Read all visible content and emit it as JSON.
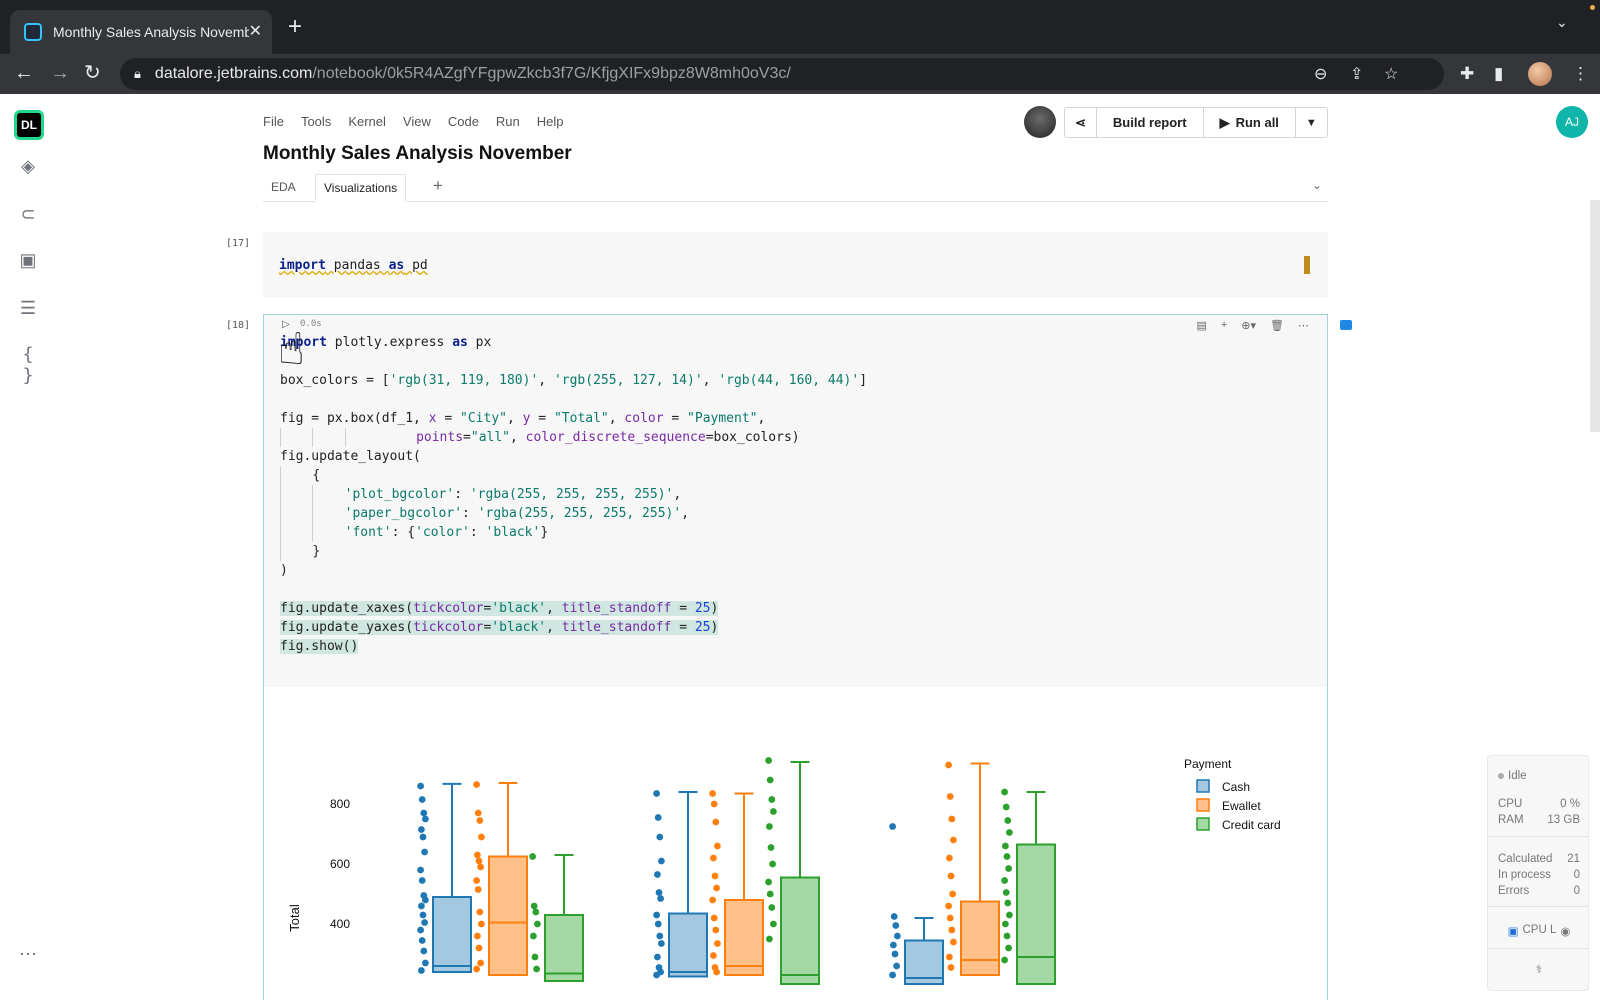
{
  "browser": {
    "tab_title": "Monthly Sales Analysis November",
    "url_host": "datalore.jetbrains.com",
    "url_path": "/notebook/0k5R4AZgfYFgpwZkcb3f7G/KfjgXIFx9bpz8W8mh0oV3c/"
  },
  "sidebar": {
    "logo_text": "DL"
  },
  "user": {
    "initials": "AJ"
  },
  "menu": {
    "items": [
      "File",
      "Tools",
      "Kernel",
      "View",
      "Code",
      "Run",
      "Help"
    ]
  },
  "actions": {
    "build_report": "Build report",
    "run_all": "Run all"
  },
  "notebook": {
    "title": "Monthly Sales Analysis November",
    "sheets": [
      "EDA",
      "Visualizations"
    ],
    "active_sheet": "Visualizations"
  },
  "cells": [
    {
      "exec_count": "[17]",
      "code_lines": [
        "import pandas as pd"
      ]
    },
    {
      "exec_count": "[18]",
      "exec_time": "0.0s",
      "code_lines": [
        "import plotly.express as px",
        "",
        "box_colors = ['rgb(31, 119, 180)', 'rgb(255, 127, 14)', 'rgb(44, 160, 44)']",
        "",
        "fig = px.box(df_1, x = \"City\", y = \"Total\", color = \"Payment\",",
        "             points=\"all\", color_discrete_sequence=box_colors)",
        "fig.update_layout(",
        "    {",
        "        'plot_bgcolor': 'rgba(255, 255, 255, 255)',",
        "        'paper_bgcolor': 'rgba(255, 255, 255, 255)',",
        "        'font': {'color': 'black'}",
        "    }",
        ")",
        "",
        "fig.update_xaxes(tickcolor='black', title_standoff = 25)",
        "fig.update_yaxes(tickcolor='black', title_standoff = 25)",
        "fig.show()"
      ]
    }
  ],
  "chart_data": {
    "type": "box",
    "ylabel": "Total",
    "yticks": [
      400,
      600,
      800
    ],
    "legend_title": "Payment",
    "legend_placement": "top-right",
    "series": [
      {
        "name": "Cash",
        "color": "#1f77b4"
      },
      {
        "name": "Ewallet",
        "color": "#ff7f0e"
      },
      {
        "name": "Credit card",
        "color": "#2ca02c"
      }
    ],
    "groups": [
      {
        "boxes": [
          {
            "series": "Cash",
            "q1": 240,
            "median": 260,
            "q3": 490,
            "whisker_high": 867,
            "points": [
              860,
              815,
              770,
              750,
              715,
              690,
              640,
              580,
              545,
              495,
              480,
              460,
              430,
              405,
              380,
              345,
              310,
              270,
              245
            ]
          },
          {
            "series": "Ewallet",
            "q1": 230,
            "median": 405,
            "q3": 625,
            "whisker_high": 870,
            "points": [
              865,
              770,
              745,
              690,
              630,
              610,
              590,
              545,
              515,
              440,
              400,
              360,
              320,
              270,
              250
            ]
          },
          {
            "series": "Credit card",
            "q1": 210,
            "median": 235,
            "q3": 430,
            "whisker_high": 630,
            "points": [
              625,
              460,
              440,
              400,
              360,
              290,
              250
            ]
          }
        ]
      },
      {
        "boxes": [
          {
            "series": "Cash",
            "q1": 225,
            "median": 240,
            "q3": 435,
            "whisker_high": 840,
            "points": [
              835,
              755,
              690,
              610,
              565,
              505,
              485,
              430,
              400,
              360,
              335,
              290,
              255,
              240,
              230
            ]
          },
          {
            "series": "Ewallet",
            "q1": 230,
            "median": 260,
            "q3": 480,
            "whisker_high": 835,
            "points": [
              835,
              800,
              740,
              660,
              620,
              560,
              520,
              480,
              420,
              380,
              335,
              295,
              255,
              240
            ]
          },
          {
            "series": "Credit card",
            "q1": 200,
            "median": 230,
            "q3": 555,
            "whisker_high": 940,
            "points": [
              945,
              880,
              815,
              775,
              725,
              655,
              600,
              540,
              500,
              455,
              400,
              350
            ]
          }
        ]
      },
      {
        "boxes": [
          {
            "series": "Cash",
            "q1": 200,
            "median": 220,
            "q3": 345,
            "whisker_high": 420,
            "points": [
              725,
              425,
              395,
              360,
              330,
              300,
              260,
              230
            ]
          },
          {
            "series": "Ewallet",
            "q1": 230,
            "median": 280,
            "q3": 475,
            "whisker_high": 935,
            "points": [
              930,
              825,
              750,
              680,
              620,
              560,
              500,
              460,
              420,
              380,
              340,
              290,
              255
            ]
          },
          {
            "series": "Credit card",
            "q1": 200,
            "median": 290,
            "q3": 665,
            "whisker_high": 840,
            "points": [
              840,
              790,
              745,
              705,
              660,
              625,
              585,
              545,
              505,
              470,
              430,
              400,
              360,
              320,
              280
            ]
          }
        ]
      }
    ]
  },
  "status": {
    "state": "Idle",
    "cpu_label": "CPU",
    "cpu_value": "0 %",
    "ram_label": "RAM",
    "ram_value": "13 GB",
    "calculated_label": "Calculated",
    "calculated_value": "21",
    "in_process_label": "In process",
    "in_process_value": "0",
    "errors_label": "Errors",
    "errors_value": "0",
    "machine": "CPU L"
  }
}
